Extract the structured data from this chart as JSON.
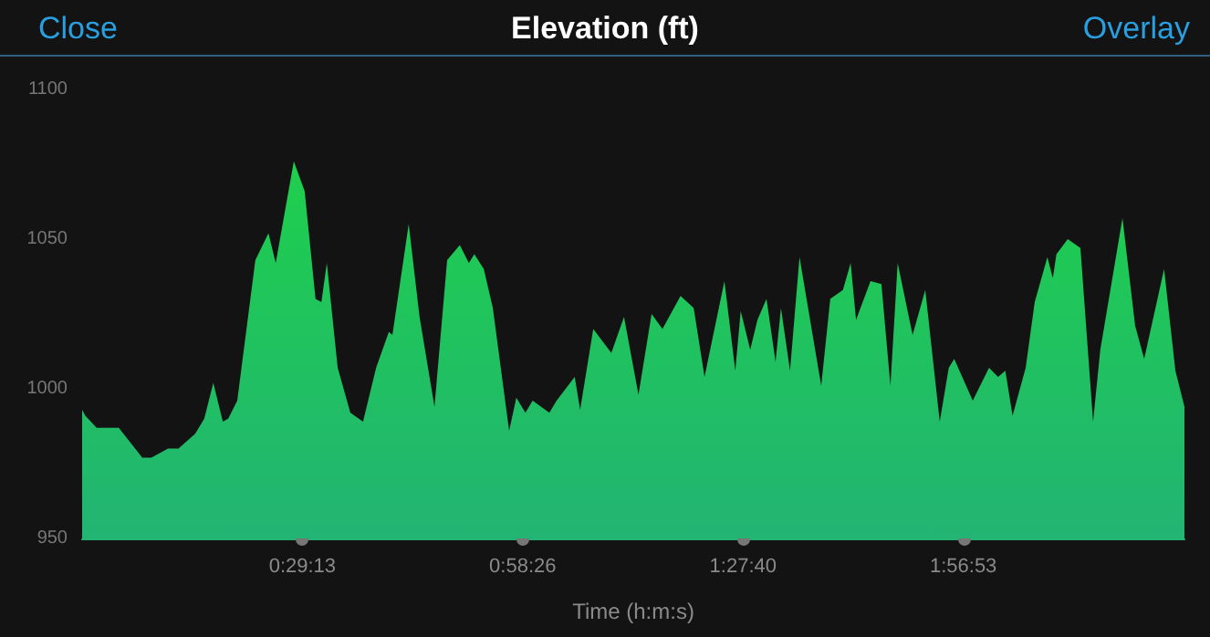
{
  "chart_data": {
    "type": "area",
    "title": "Elevation (ft)",
    "xlabel": "Time (h:m:s)",
    "annotations": [
      "Close",
      "Overlay"
    ],
    "xlim": [
      0,
      2.437
    ],
    "xticks": [
      {
        "value": 0.486944,
        "label": "0:29:13"
      },
      {
        "value": 0.973889,
        "label": "0:58:26"
      },
      {
        "value": 1.461111,
        "label": "1:27:40"
      },
      {
        "value": 1.948056,
        "label": "1:56:53"
      }
    ],
    "ylim": [
      950,
      1100
    ],
    "yticks": [
      950,
      1000,
      1050,
      1100
    ],
    "grid": false,
    "marker": "none",
    "series": [
      {
        "color": "#1ecf4c",
        "x": [
          0,
          0.007,
          0.032,
          0.081,
          0.133,
          0.153,
          0.19,
          0.213,
          0.25,
          0.27,
          0.29,
          0.311,
          0.323,
          0.343,
          0.383,
          0.412,
          0.428,
          0.468,
          0.492,
          0.516,
          0.529,
          0.541,
          0.565,
          0.593,
          0.621,
          0.65,
          0.678,
          0.686,
          0.722,
          0.746,
          0.779,
          0.807,
          0.835,
          0.855,
          0.867,
          0.888,
          0.908,
          0.944,
          0.96,
          0.98,
          0.996,
          1.033,
          1.049,
          1.089,
          1.101,
          1.13,
          1.17,
          1.198,
          1.23,
          1.259,
          1.283,
          1.323,
          1.352,
          1.376,
          1.42,
          1.444,
          1.456,
          1.477,
          1.493,
          1.513,
          1.533,
          1.545,
          1.565,
          1.586,
          1.634,
          1.654,
          1.682,
          1.699,
          1.711,
          1.743,
          1.767,
          1.787,
          1.803,
          1.836,
          1.864,
          1.896,
          1.916,
          1.928,
          1.969,
          2.005,
          2.025,
          2.041,
          2.057,
          2.086,
          2.106,
          2.134,
          2.146,
          2.154,
          2.179,
          2.207,
          2.235,
          2.251,
          2.3,
          2.328,
          2.348,
          2.392,
          2.417,
          2.437
        ],
        "values": [
          993,
          991,
          987,
          987,
          977,
          977,
          980,
          980,
          985,
          990,
          1002,
          989,
          990,
          996,
          1043,
          1052,
          1042,
          1076,
          1066,
          1030,
          1029,
          1042,
          1007,
          992,
          989,
          1007,
          1019,
          1018,
          1055,
          1024,
          994,
          1043,
          1048,
          1042,
          1045,
          1040,
          1027,
          986,
          997,
          992,
          996,
          992,
          996,
          1004,
          993,
          1020,
          1012,
          1024,
          998,
          1025,
          1020,
          1031,
          1027,
          1004,
          1036,
          1006,
          1026,
          1013,
          1023,
          1030,
          1009,
          1027,
          1006,
          1044,
          1001,
          1030,
          1033,
          1042,
          1023,
          1036,
          1035,
          1001,
          1042,
          1018,
          1033,
          989,
          1007,
          1010,
          996,
          1007,
          1004,
          1006,
          991,
          1007,
          1029,
          1044,
          1037,
          1045,
          1050,
          1047,
          989,
          1013,
          1057,
          1021,
          1010,
          1040,
          1006,
          994
        ]
      }
    ]
  }
}
